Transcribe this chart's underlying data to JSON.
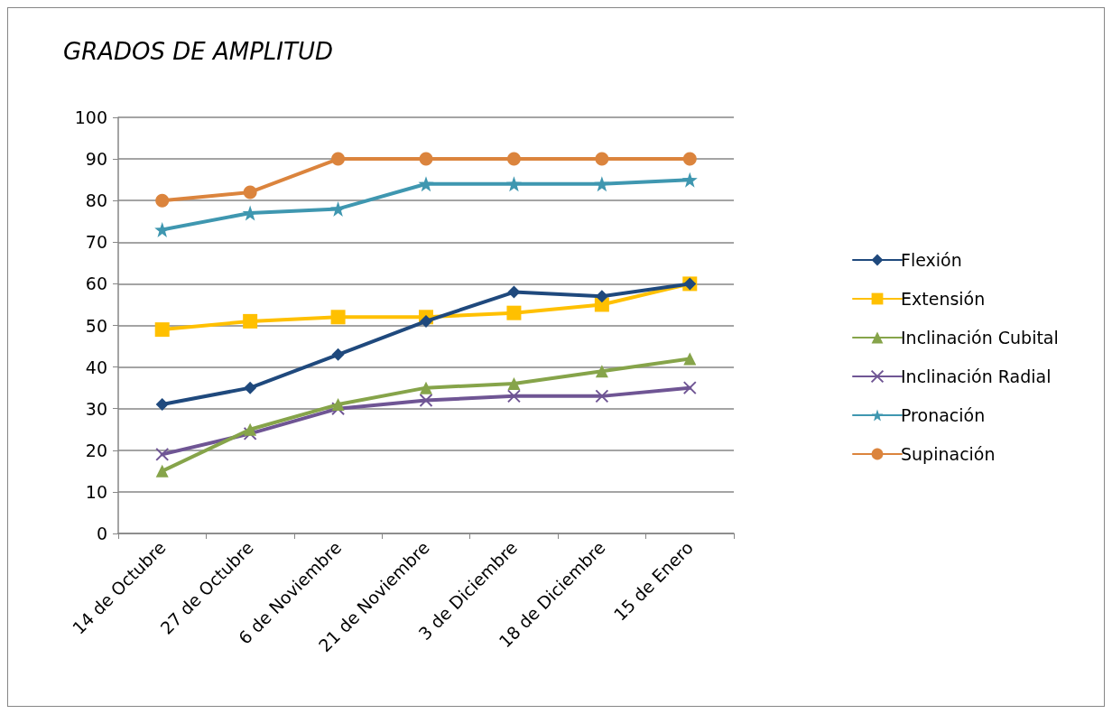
{
  "chart_data": {
    "type": "line",
    "title": "GRADOS DE AMPLITUD",
    "categories": [
      "14 de Octubre",
      "27 de Octubre",
      "6 de Noviembre",
      "21 de Noviembre",
      "3 de Diciembre",
      "18 de Diciembre",
      "15 de Enero"
    ],
    "series": [
      {
        "name": "Flexión",
        "color": "#1f497d",
        "marker": "diamond",
        "values": [
          31,
          35,
          43,
          51,
          58,
          57,
          60
        ]
      },
      {
        "name": "Extensión",
        "color": "#ffc000",
        "marker": "square",
        "values": [
          49,
          51,
          52,
          52,
          53,
          55,
          60
        ]
      },
      {
        "name": "Inclinación Cubital",
        "color": "#86a44a",
        "marker": "triangle",
        "values": [
          15,
          25,
          31,
          35,
          36,
          39,
          42
        ]
      },
      {
        "name": "Inclinación Radial",
        "color": "#6f5594",
        "marker": "cross",
        "values": [
          19,
          24,
          30,
          32,
          33,
          33,
          35
        ]
      },
      {
        "name": "Pronación",
        "color": "#3f97b0",
        "marker": "star",
        "values": [
          73,
          77,
          78,
          84,
          84,
          84,
          85
        ]
      },
      {
        "name": "Supinación",
        "color": "#db843d",
        "marker": "circle",
        "values": [
          80,
          82,
          90,
          90,
          90,
          90,
          90
        ]
      }
    ],
    "ylim": [
      0,
      100
    ],
    "yticks": [
      0,
      10,
      20,
      30,
      40,
      50,
      60,
      70,
      80,
      90,
      100
    ],
    "grid": "y",
    "legend": "right",
    "line_style": "solid"
  }
}
